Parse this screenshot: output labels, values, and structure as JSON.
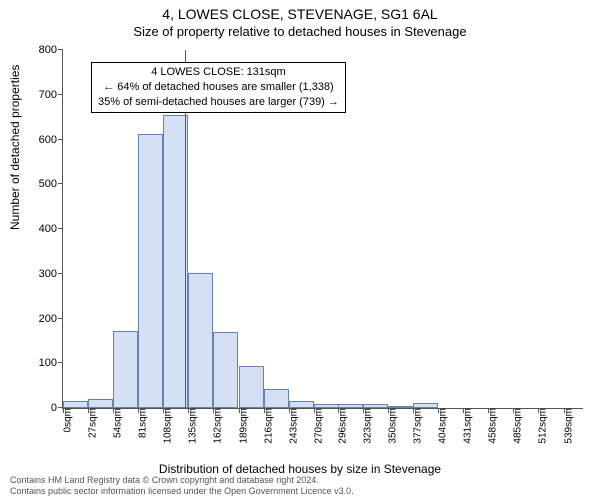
{
  "title_main": "4, LOWES CLOSE, STEVENAGE, SG1 6AL",
  "title_sub": "Size of property relative to detached houses in Stevenage",
  "y_axis_label": "Number of detached properties",
  "x_axis_title": "Distribution of detached houses by size in Stevenage",
  "footer_line1": "Contains HM Land Registry data © Crown copyright and database right 2024.",
  "footer_line2": "Contains public sector information licensed under the Open Government Licence v3.0.",
  "annotation": {
    "line1": "4 LOWES CLOSE: 131sqm",
    "line2": "← 64% of detached houses are smaller (1,338)",
    "line3": "35% of semi-detached houses are larger (739) →"
  },
  "chart": {
    "type": "histogram",
    "bar_fill": "#d6e0f5",
    "bar_border": "#6681b8",
    "marker_color": "#d62728",
    "marker_value": 131,
    "background_color": "#ffffff",
    "axis_color": "#555555",
    "text_color": "#000000",
    "ylim": [
      0,
      800
    ],
    "ytick_step": 100,
    "xlim": [
      0,
      560
    ],
    "xtick_step": 27,
    "x_unit": "sqm",
    "bar_bin_width": 27,
    "title_fontsize": 14,
    "subtitle_fontsize": 13,
    "axis_label_fontsize": 12,
    "tick_fontsize": 11,
    "annotation_fontsize": 11,
    "bar_categories_start": [
      0,
      27,
      54,
      81,
      108,
      135,
      162,
      189,
      216,
      243,
      270,
      296,
      323,
      350,
      377,
      404,
      431,
      458,
      485,
      512,
      539
    ],
    "values": [
      15,
      20,
      172,
      612,
      655,
      302,
      170,
      95,
      42,
      15,
      10,
      8,
      8,
      5,
      12,
      0,
      0,
      0,
      0,
      0,
      0
    ]
  }
}
